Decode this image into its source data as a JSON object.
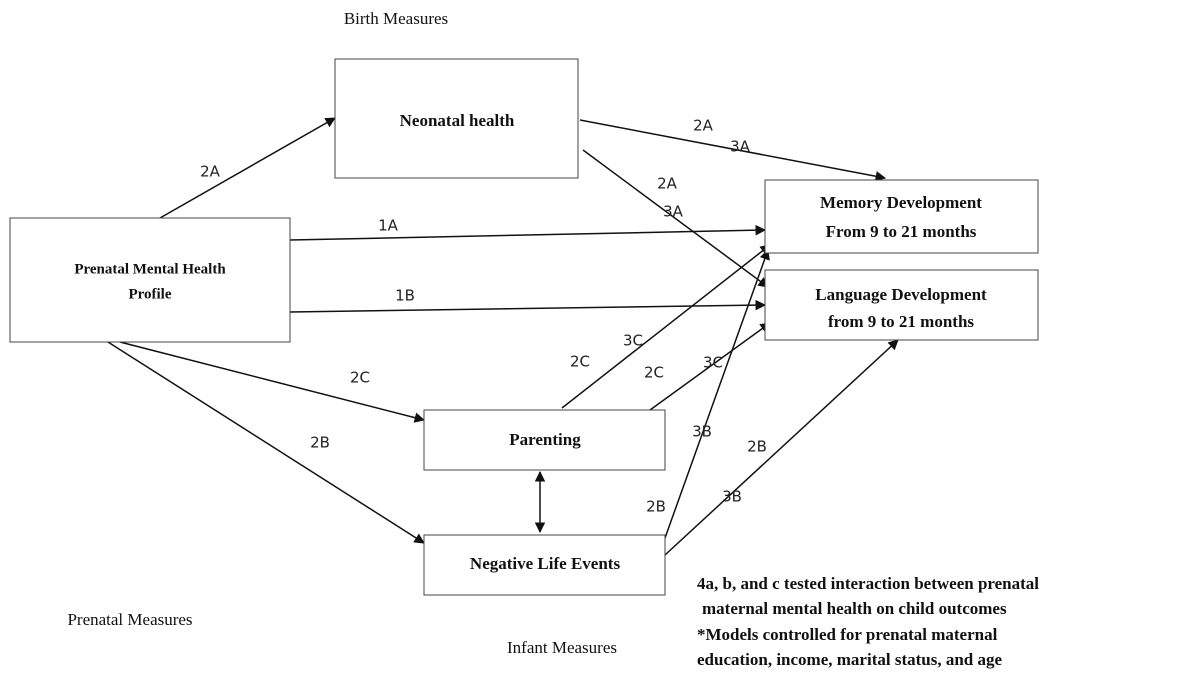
{
  "sections": {
    "birth": "Birth Measures",
    "prenatal": "Prenatal Measures",
    "infant": "Infant Measures"
  },
  "nodes": [
    {
      "lines": [
        "Neonatal health"
      ]
    },
    {
      "lines": [
        "Prenatal Mental Health",
        "Profile"
      ]
    },
    {
      "lines": [
        "Memory Development",
        "From 9 to 21 months"
      ]
    },
    {
      "lines": [
        "Language Development",
        "from 9 to 21 months"
      ]
    },
    {
      "lines": [
        "Parenting"
      ]
    },
    {
      "lines": [
        "Negative Life Events"
      ]
    }
  ],
  "edge_labels": [
    "2A",
    "1A",
    "1B",
    "2C",
    "2B",
    "2A",
    "3A",
    "2A",
    "3A",
    "2C",
    "3C",
    "2C",
    "3C",
    "3B",
    "2B",
    "2B",
    "3B"
  ],
  "notes": [
    "4a, b, and c tested interaction between prenatal",
    "maternal mental health on child outcomes",
    "*Models controlled for prenatal maternal",
    "education, income, marital status, and age"
  ]
}
